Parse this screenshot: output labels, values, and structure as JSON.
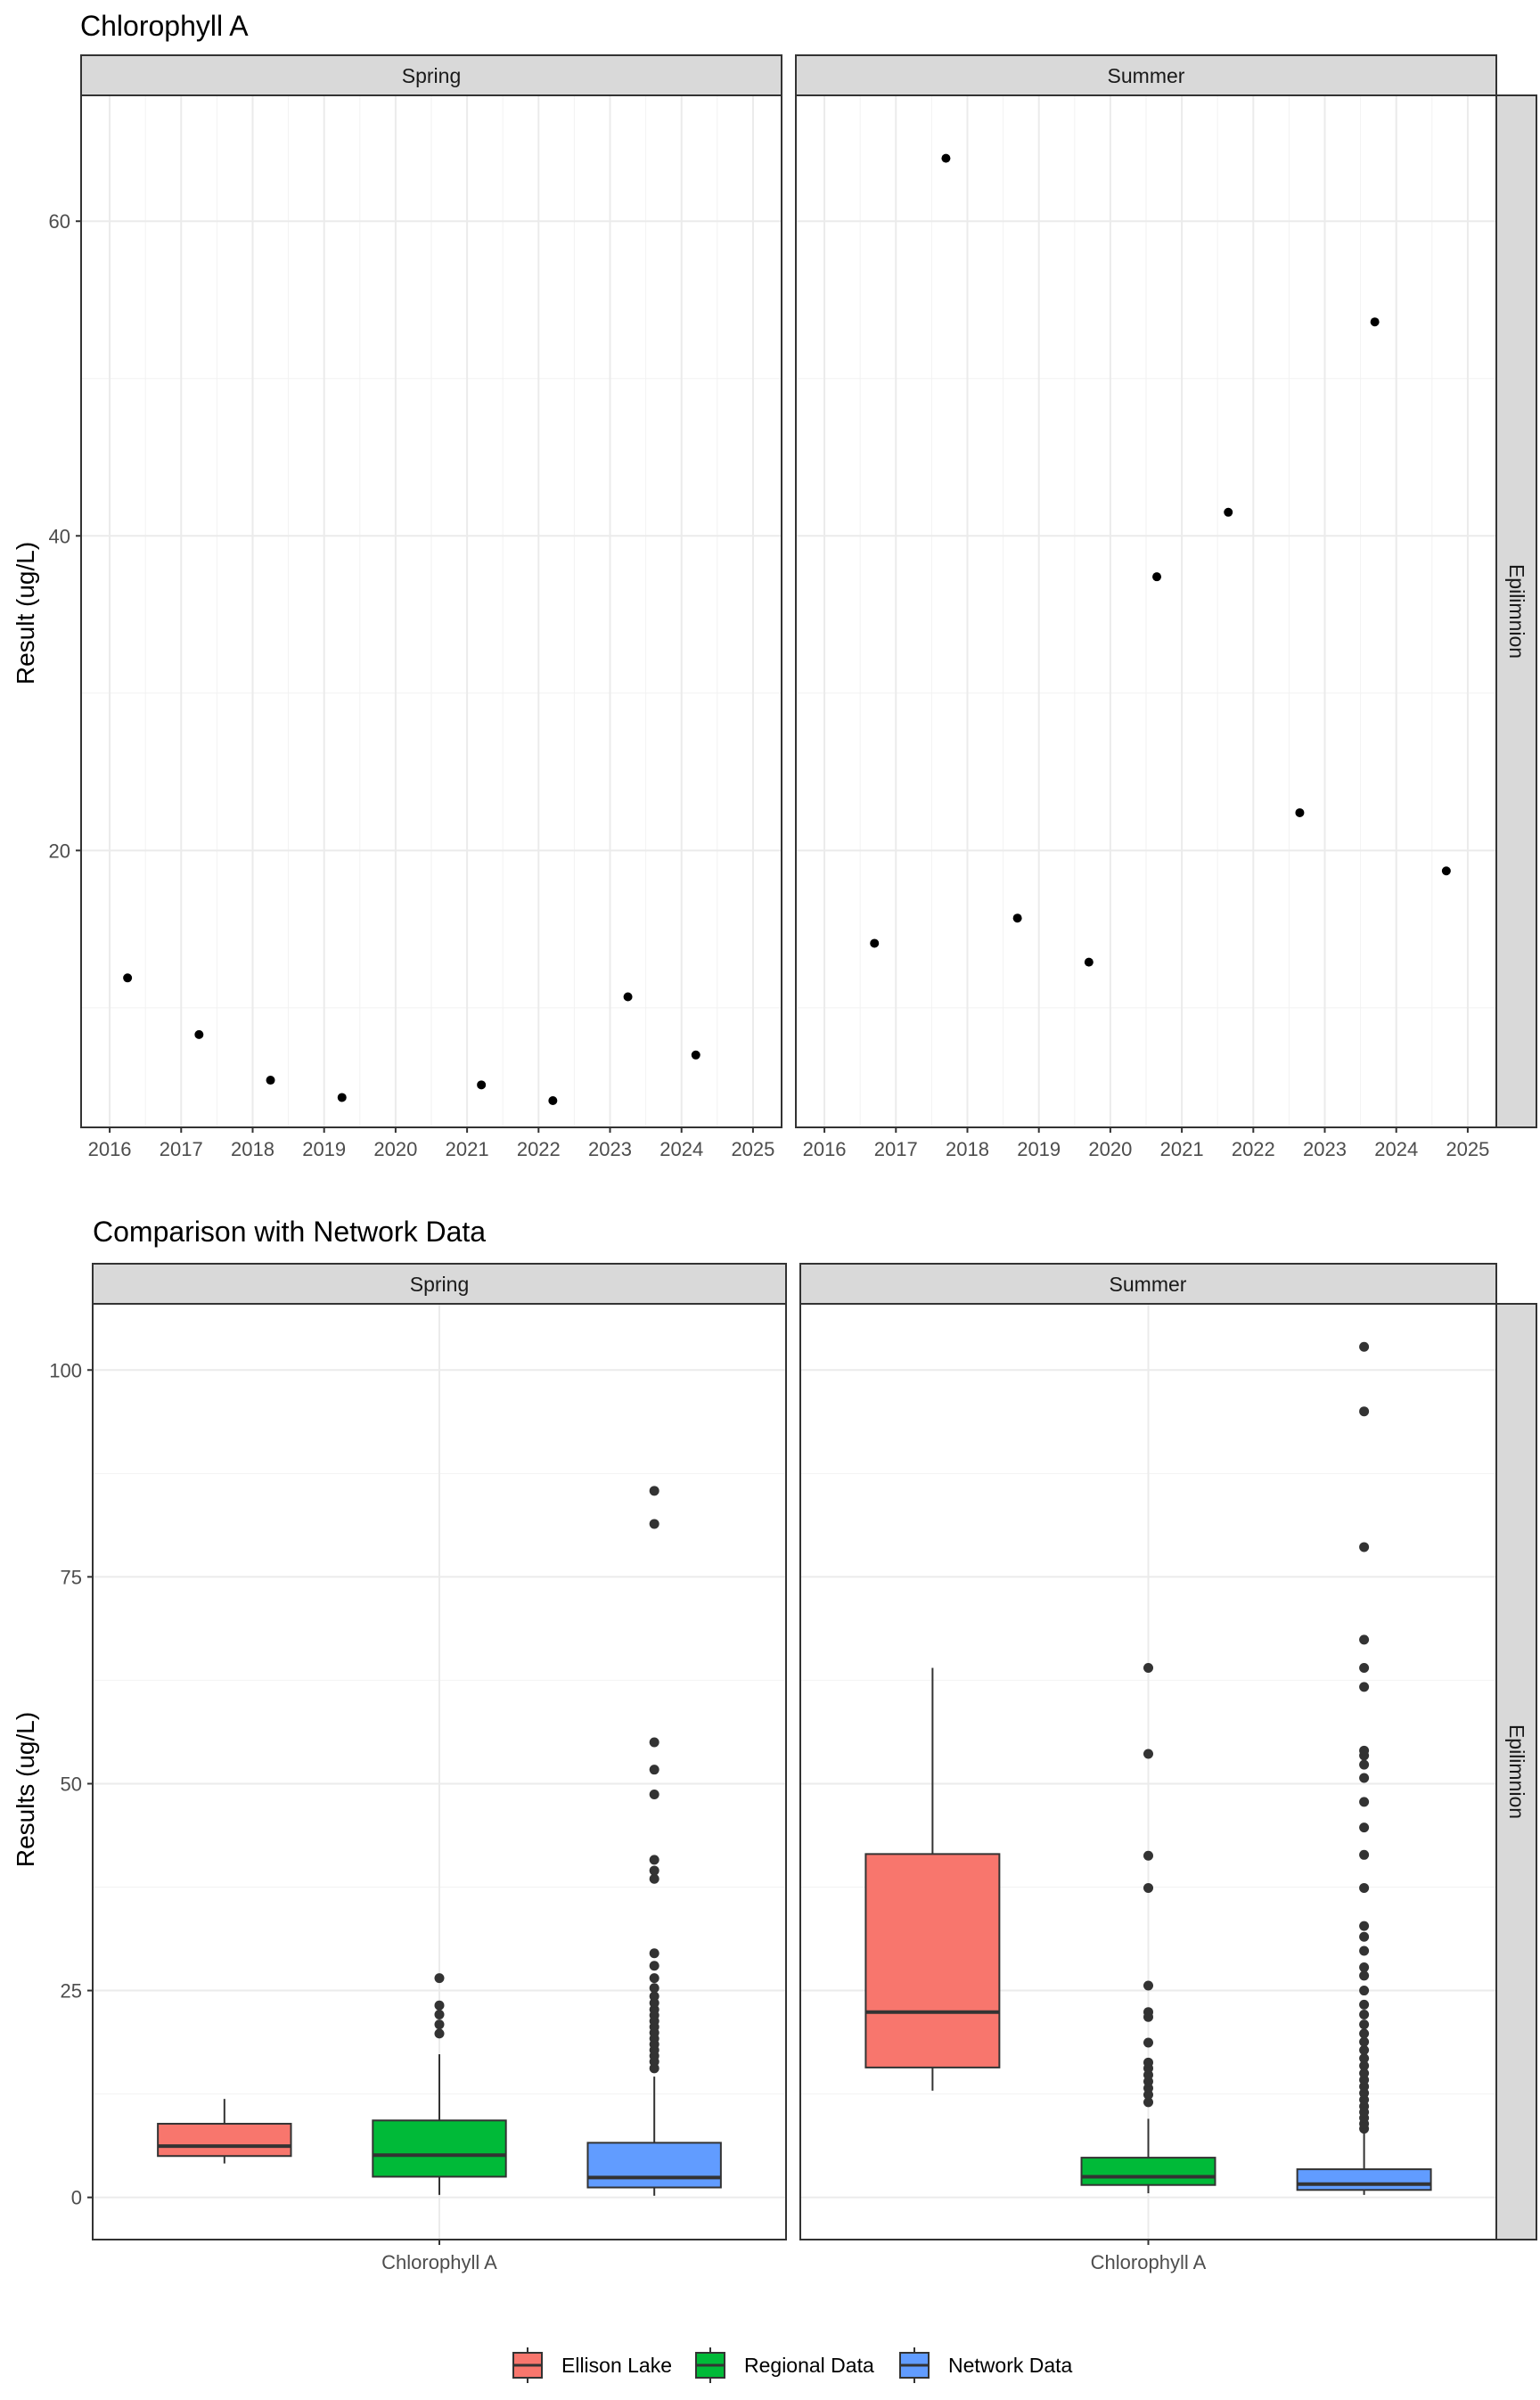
{
  "chart_data": [
    {
      "type": "scatter",
      "title": "Chlorophyll A",
      "xlabel": "",
      "ylabel": "Result (ug/L)",
      "row_strip": "Epilimnion",
      "xlim": [
        2015.6,
        2025.4
      ],
      "ylim": [
        2.4,
        68.0
      ],
      "x_ticks": [
        "2016",
        "2017",
        "2018",
        "2019",
        "2020",
        "2021",
        "2022",
        "2023",
        "2024",
        "2025"
      ],
      "y_ticks": [
        "20",
        "40",
        "60"
      ],
      "panels": [
        {
          "label": "Spring",
          "points": [
            {
              "x": 2016.25,
              "y": 11.9
            },
            {
              "x": 2017.25,
              "y": 8.3
            },
            {
              "x": 2018.25,
              "y": 5.4
            },
            {
              "x": 2019.25,
              "y": 4.3
            },
            {
              "x": 2021.2,
              "y": 5.1
            },
            {
              "x": 2022.2,
              "y": 4.1
            },
            {
              "x": 2023.25,
              "y": 10.7
            },
            {
              "x": 2024.2,
              "y": 7.0
            }
          ]
        },
        {
          "label": "Summer",
          "points": [
            {
              "x": 2016.7,
              "y": 14.1
            },
            {
              "x": 2017.7,
              "y": 64.0
            },
            {
              "x": 2018.7,
              "y": 15.7
            },
            {
              "x": 2019.7,
              "y": 12.9
            },
            {
              "x": 2020.65,
              "y": 37.4
            },
            {
              "x": 2021.65,
              "y": 41.5
            },
            {
              "x": 2022.65,
              "y": 22.4
            },
            {
              "x": 2023.7,
              "y": 53.6
            },
            {
              "x": 2024.7,
              "y": 18.7
            }
          ]
        }
      ]
    },
    {
      "type": "box",
      "title": "Comparison with Network Data",
      "xlabel": "",
      "ylabel": "Results (ug/L)",
      "row_strip": "Epilimnion",
      "category": "Chlorophyll A",
      "ylim": [
        -5.1,
        108.0
      ],
      "y_ticks": [
        "0",
        "25",
        "50",
        "75",
        "100"
      ],
      "series": [
        "Ellison Lake",
        "Regional Data",
        "Network Data"
      ],
      "colors": {
        "Ellison Lake": "#F8766D",
        "Regional Data": "#00BA38",
        "Network Data": "#619CFF"
      },
      "panels": [
        {
          "label": "Spring",
          "boxes": [
            {
              "series": "Ellison Lake",
              "min": 4.1,
              "q1": 5.0,
              "median": 6.2,
              "q3": 8.9,
              "max": 11.9,
              "outliers": []
            },
            {
              "series": "Regional Data",
              "min": 0.3,
              "q1": 2.5,
              "median": 5.1,
              "q3": 9.3,
              "max": 17.3,
              "outliers": [
                19.8,
                20.9,
                22.1,
                23.2,
                26.5
              ]
            },
            {
              "series": "Network Data",
              "min": 0.2,
              "q1": 1.2,
              "median": 2.4,
              "q3": 6.6,
              "max": 14.6,
              "outliers": [
                15.6,
                16.4,
                17.1,
                17.8,
                18.5,
                19.2,
                19.9,
                20.6,
                21.3,
                22.0,
                22.7,
                23.5,
                24.3,
                25.3,
                26.5,
                28.0,
                29.5,
                38.5,
                39.5,
                40.8,
                48.7,
                51.7,
                55.0,
                81.4,
                85.4
              ]
            }
          ]
        },
        {
          "label": "Summer",
          "boxes": [
            {
              "series": "Ellison Lake",
              "min": 12.9,
              "q1": 15.7,
              "median": 22.4,
              "q3": 41.5,
              "max": 64.0,
              "outliers": []
            },
            {
              "series": "Regional Data",
              "min": 0.5,
              "q1": 1.5,
              "median": 2.5,
              "q3": 4.8,
              "max": 9.5,
              "outliers": [
                11.5,
                12.4,
                13.2,
                14.0,
                14.8,
                15.6,
                16.3,
                18.7,
                21.8,
                22.4,
                25.6,
                37.4,
                41.3,
                53.6,
                64.0
              ]
            },
            {
              "series": "Network Data",
              "min": 0.3,
              "q1": 0.9,
              "median": 1.6,
              "q3": 3.4,
              "max": 7.8,
              "outliers": [
                8.3,
                8.9,
                9.6,
                10.3,
                11.0,
                11.8,
                12.6,
                13.4,
                14.2,
                15.0,
                15.9,
                16.8,
                17.8,
                18.8,
                19.8,
                20.9,
                22.1,
                23.3,
                25.0,
                26.8,
                27.8,
                29.8,
                31.5,
                32.8,
                37.4,
                41.4,
                44.7,
                47.8,
                50.7,
                52.3,
                53.4,
                54.0,
                61.7,
                64.0,
                67.4,
                78.6,
                95.0,
                102.8
              ]
            }
          ]
        }
      ]
    }
  ],
  "legend": {
    "position": "bottom",
    "items": [
      {
        "label": "Ellison Lake",
        "color": "#F8766D"
      },
      {
        "label": "Regional Data",
        "color": "#00BA38"
      },
      {
        "label": "Network Data",
        "color": "#619CFF"
      }
    ]
  }
}
